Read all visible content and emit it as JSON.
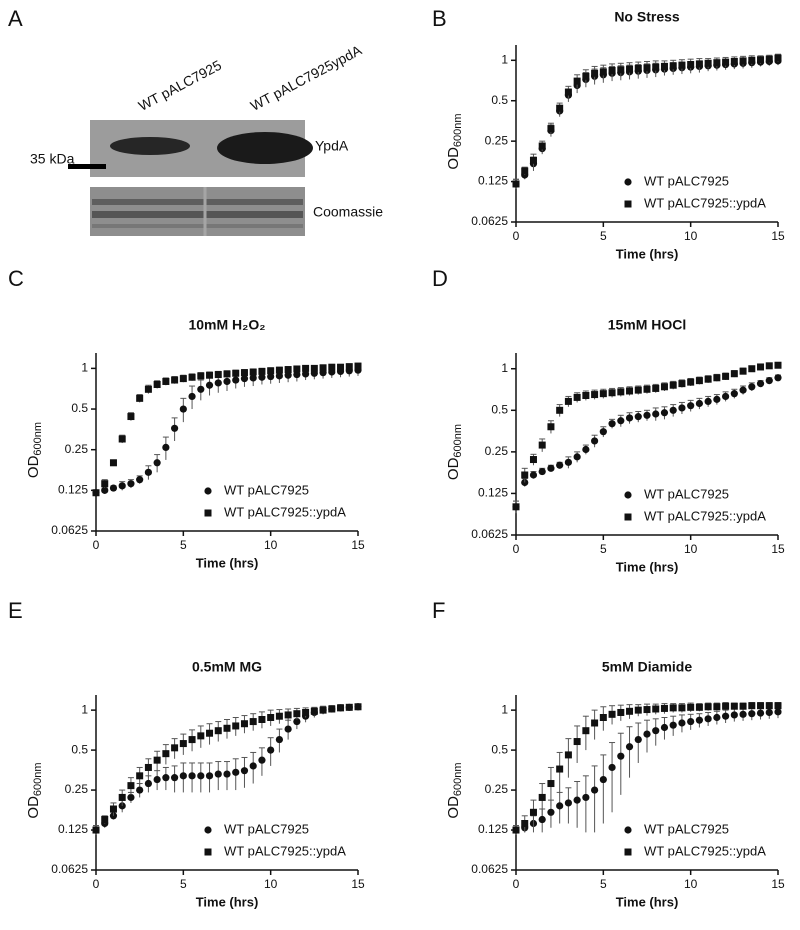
{
  "panel_labels": [
    "A",
    "B",
    "C",
    "D",
    "E",
    "F"
  ],
  "blot": {
    "lane_labels": [
      "WT pALC7925",
      "WT pALC7925ypdA"
    ],
    "row_labels": [
      "YpdA",
      "Coomassie"
    ],
    "marker_label": "35 kDa"
  },
  "chart_data": [
    {
      "type": "scatter",
      "title": "No Stress",
      "x_label": "Time (hrs)",
      "y_label": "OD",
      "y_label_subscript": "600nm",
      "yscale": "log2",
      "xlim": [
        0,
        15
      ],
      "xticks": [
        0,
        5,
        10,
        15
      ],
      "ylim": [
        0.0625,
        1.3
      ],
      "yticks": [
        0.0625,
        0.125,
        0.25,
        0.5,
        1
      ],
      "x": [
        0,
        0.5,
        1,
        1.5,
        2,
        2.5,
        3,
        3.5,
        4,
        4.5,
        5,
        5.5,
        6,
        6.5,
        7,
        7.5,
        8,
        8.5,
        9,
        9.5,
        10,
        10.5,
        11,
        11.5,
        12,
        12.5,
        13,
        13.5,
        14,
        14.5,
        15
      ],
      "series": [
        {
          "name": "WT pALC7925",
          "color": "#111111",
          "marker": "circle",
          "values": [
            0.12,
            0.14,
            0.17,
            0.22,
            0.3,
            0.42,
            0.55,
            0.65,
            0.72,
            0.76,
            0.78,
            0.8,
            0.81,
            0.82,
            0.83,
            0.84,
            0.85,
            0.86,
            0.87,
            0.88,
            0.89,
            0.9,
            0.91,
            0.92,
            0.93,
            0.94,
            0.95,
            0.96,
            0.97,
            0.98,
            0.99
          ],
          "errors": [
            0.01,
            0.01,
            0.02,
            0.02,
            0.03,
            0.04,
            0.06,
            0.08,
            0.09,
            0.1,
            0.1,
            0.1,
            0.1,
            0.1,
            0.1,
            0.1,
            0.1,
            0.09,
            0.09,
            0.09,
            0.09,
            0.09,
            0.08,
            0.08,
            0.08,
            0.08,
            0.08,
            0.08,
            0.07,
            0.07,
            0.07
          ]
        },
        {
          "name": "WT pALC7925::ypdA",
          "color": "#111111",
          "marker": "square",
          "values": [
            0.12,
            0.15,
            0.18,
            0.23,
            0.31,
            0.44,
            0.58,
            0.7,
            0.76,
            0.8,
            0.82,
            0.84,
            0.85,
            0.86,
            0.87,
            0.88,
            0.89,
            0.9,
            0.91,
            0.92,
            0.93,
            0.94,
            0.95,
            0.96,
            0.97,
            0.98,
            0.99,
            1.0,
            1.01,
            1.02,
            1.04
          ],
          "errors": [
            0.01,
            0.01,
            0.02,
            0.02,
            0.03,
            0.04,
            0.06,
            0.08,
            0.09,
            0.1,
            0.1,
            0.1,
            0.1,
            0.1,
            0.1,
            0.1,
            0.1,
            0.09,
            0.09,
            0.09,
            0.09,
            0.09,
            0.08,
            0.08,
            0.08,
            0.08,
            0.08,
            0.08,
            0.07,
            0.07,
            0.07
          ]
        }
      ]
    },
    {
      "type": "scatter",
      "title": "10mM H₂O₂",
      "x_label": "Time (hrs)",
      "y_label": "OD",
      "y_label_subscript": "600nm",
      "yscale": "log2",
      "xlim": [
        0,
        15
      ],
      "xticks": [
        0,
        5,
        10,
        15
      ],
      "ylim": [
        0.0625,
        1.3
      ],
      "yticks": [
        0.0625,
        0.125,
        0.25,
        0.5,
        1
      ],
      "x": [
        0,
        0.5,
        1,
        1.5,
        2,
        2.5,
        3,
        3.5,
        4,
        4.5,
        5,
        5.5,
        6,
        6.5,
        7,
        7.5,
        8,
        8.5,
        9,
        9.5,
        10,
        10.5,
        11,
        11.5,
        12,
        12.5,
        13,
        13.5,
        14,
        14.5,
        15
      ],
      "series": [
        {
          "name": "WT pALC7925",
          "color": "#111111",
          "marker": "circle",
          "values": [
            0.12,
            0.125,
            0.13,
            0.135,
            0.14,
            0.15,
            0.17,
            0.2,
            0.26,
            0.36,
            0.5,
            0.62,
            0.7,
            0.75,
            0.78,
            0.8,
            0.82,
            0.84,
            0.85,
            0.86,
            0.87,
            0.88,
            0.89,
            0.9,
            0.91,
            0.92,
            0.93,
            0.94,
            0.95,
            0.96,
            0.97
          ],
          "errors": [
            0.005,
            0.005,
            0.005,
            0.01,
            0.01,
            0.01,
            0.02,
            0.03,
            0.05,
            0.07,
            0.1,
            0.12,
            0.12,
            0.12,
            0.12,
            0.12,
            0.11,
            0.11,
            0.11,
            0.1,
            0.1,
            0.1,
            0.1,
            0.1,
            0.09,
            0.09,
            0.09,
            0.09,
            0.09,
            0.09,
            0.09
          ]
        },
        {
          "name": "WT pALC7925::ypdA",
          "color": "#111111",
          "marker": "square",
          "values": [
            0.12,
            0.14,
            0.2,
            0.3,
            0.44,
            0.6,
            0.7,
            0.76,
            0.8,
            0.82,
            0.84,
            0.86,
            0.88,
            0.89,
            0.9,
            0.91,
            0.92,
            0.93,
            0.94,
            0.95,
            0.96,
            0.97,
            0.98,
            0.99,
            1.0,
            1.0,
            1.01,
            1.02,
            1.02,
            1.03,
            1.04
          ],
          "errors": [
            0.005,
            0.01,
            0.01,
            0.02,
            0.03,
            0.04,
            0.05,
            0.05,
            0.05,
            0.05,
            0.05,
            0.05,
            0.05,
            0.05,
            0.05,
            0.05,
            0.05,
            0.05,
            0.05,
            0.05,
            0.05,
            0.05,
            0.05,
            0.05,
            0.05,
            0.05,
            0.05,
            0.05,
            0.05,
            0.05,
            0.05
          ]
        }
      ]
    },
    {
      "type": "scatter",
      "title": "15mM HOCl",
      "x_label": "Time (hrs)",
      "y_label": "OD",
      "y_label_subscript": "600nm",
      "yscale": "log2",
      "xlim": [
        0,
        15
      ],
      "xticks": [
        0,
        5,
        10,
        15
      ],
      "ylim": [
        0.0625,
        1.3
      ],
      "yticks": [
        0.0625,
        0.125,
        0.25,
        0.5,
        1
      ],
      "x": [
        0,
        0.5,
        1,
        1.5,
        2,
        2.5,
        3,
        3.5,
        4,
        4.5,
        5,
        5.5,
        6,
        6.5,
        7,
        7.5,
        8,
        8.5,
        9,
        9.5,
        10,
        10.5,
        11,
        11.5,
        12,
        12.5,
        13,
        13.5,
        14,
        14.5,
        15
      ],
      "series": [
        {
          "name": "WT pALC7925",
          "color": "#111111",
          "marker": "circle",
          "values": [
            0.1,
            0.15,
            0.17,
            0.18,
            0.19,
            0.2,
            0.21,
            0.23,
            0.26,
            0.3,
            0.35,
            0.4,
            0.42,
            0.44,
            0.45,
            0.46,
            0.47,
            0.48,
            0.5,
            0.52,
            0.54,
            0.56,
            0.58,
            0.6,
            0.63,
            0.66,
            0.7,
            0.74,
            0.78,
            0.82,
            0.86
          ],
          "errors": [
            0.01,
            0.01,
            0.01,
            0.01,
            0.01,
            0.01,
            0.02,
            0.02,
            0.02,
            0.03,
            0.03,
            0.03,
            0.04,
            0.04,
            0.04,
            0.04,
            0.05,
            0.05,
            0.05,
            0.05,
            0.05,
            0.05,
            0.05,
            0.05,
            0.05,
            0.05,
            0.05,
            0.05,
            0.04,
            0.04,
            0.04
          ]
        },
        {
          "name": "WT pALC7925::ypdA",
          "color": "#111111",
          "marker": "square",
          "values": [
            0.1,
            0.17,
            0.22,
            0.28,
            0.38,
            0.5,
            0.58,
            0.62,
            0.64,
            0.65,
            0.66,
            0.67,
            0.68,
            0.69,
            0.7,
            0.71,
            0.72,
            0.74,
            0.76,
            0.78,
            0.8,
            0.82,
            0.84,
            0.86,
            0.88,
            0.92,
            0.96,
            1.0,
            1.03,
            1.05,
            1.06
          ],
          "errors": [
            0.01,
            0.02,
            0.02,
            0.03,
            0.04,
            0.05,
            0.05,
            0.05,
            0.05,
            0.05,
            0.05,
            0.05,
            0.05,
            0.05,
            0.05,
            0.05,
            0.05,
            0.05,
            0.05,
            0.05,
            0.05,
            0.05,
            0.05,
            0.05,
            0.05,
            0.05,
            0.05,
            0.04,
            0.04,
            0.04,
            0.04
          ]
        }
      ]
    },
    {
      "type": "scatter",
      "title": "0.5mM MG",
      "x_label": "Time (hrs)",
      "y_label": "OD",
      "y_label_subscript": "600nm",
      "yscale": "log2",
      "xlim": [
        0,
        15
      ],
      "xticks": [
        0,
        5,
        10,
        15
      ],
      "ylim": [
        0.0625,
        1.3
      ],
      "yticks": [
        0.0625,
        0.125,
        0.25,
        0.5,
        1
      ],
      "x": [
        0,
        0.5,
        1,
        1.5,
        2,
        2.5,
        3,
        3.5,
        4,
        4.5,
        5,
        5.5,
        6,
        6.5,
        7,
        7.5,
        8,
        8.5,
        9,
        9.5,
        10,
        10.5,
        11,
        11.5,
        12,
        12.5,
        13,
        13.5,
        14,
        14.5,
        15
      ],
      "series": [
        {
          "name": "WT pALC7925",
          "color": "#111111",
          "marker": "circle",
          "values": [
            0.125,
            0.14,
            0.16,
            0.19,
            0.22,
            0.25,
            0.28,
            0.3,
            0.31,
            0.31,
            0.32,
            0.32,
            0.32,
            0.32,
            0.33,
            0.33,
            0.34,
            0.35,
            0.38,
            0.42,
            0.5,
            0.6,
            0.72,
            0.82,
            0.9,
            0.96,
            1.0,
            1.02,
            1.04,
            1.05,
            1.06
          ],
          "errors": [
            0.01,
            0.01,
            0.01,
            0.02,
            0.02,
            0.03,
            0.04,
            0.05,
            0.06,
            0.07,
            0.08,
            0.08,
            0.08,
            0.08,
            0.08,
            0.08,
            0.09,
            0.09,
            0.1,
            0.1,
            0.12,
            0.12,
            0.12,
            0.1,
            0.09,
            0.08,
            0.07,
            0.06,
            0.06,
            0.05,
            0.05
          ]
        },
        {
          "name": "WT pALC7925::ypdA",
          "color": "#111111",
          "marker": "square",
          "values": [
            0.125,
            0.15,
            0.18,
            0.22,
            0.27,
            0.32,
            0.37,
            0.42,
            0.47,
            0.52,
            0.56,
            0.6,
            0.64,
            0.67,
            0.7,
            0.73,
            0.76,
            0.79,
            0.82,
            0.85,
            0.88,
            0.9,
            0.92,
            0.94,
            0.96,
            0.98,
            1.0,
            1.02,
            1.04,
            1.05,
            1.06
          ],
          "errors": [
            0.01,
            0.01,
            0.02,
            0.03,
            0.04,
            0.05,
            0.06,
            0.07,
            0.08,
            0.09,
            0.1,
            0.11,
            0.12,
            0.12,
            0.12,
            0.12,
            0.12,
            0.12,
            0.12,
            0.12,
            0.12,
            0.11,
            0.1,
            0.09,
            0.08,
            0.07,
            0.06,
            0.06,
            0.05,
            0.05,
            0.05
          ]
        }
      ]
    },
    {
      "type": "scatter",
      "title": "5mM Diamide",
      "x_label": "Time (hrs)",
      "y_label": "OD",
      "y_label_subscript": "600nm",
      "yscale": "log2",
      "xlim": [
        0,
        15
      ],
      "xticks": [
        0,
        5,
        10,
        15
      ],
      "ylim": [
        0.0625,
        1.3
      ],
      "yticks": [
        0.0625,
        0.125,
        0.25,
        0.5,
        1
      ],
      "x": [
        0,
        0.5,
        1,
        1.5,
        2,
        2.5,
        3,
        3.5,
        4,
        4.5,
        5,
        5.5,
        6,
        6.5,
        7,
        7.5,
        8,
        8.5,
        9,
        9.5,
        10,
        10.5,
        11,
        11.5,
        12,
        12.5,
        13,
        13.5,
        14,
        14.5,
        15
      ],
      "series": [
        {
          "name": "WT pALC7925",
          "color": "#111111",
          "marker": "circle",
          "values": [
            0.125,
            0.13,
            0.14,
            0.15,
            0.17,
            0.19,
            0.2,
            0.21,
            0.22,
            0.25,
            0.3,
            0.37,
            0.45,
            0.53,
            0.6,
            0.66,
            0.7,
            0.74,
            0.77,
            0.8,
            0.82,
            0.84,
            0.86,
            0.88,
            0.9,
            0.92,
            0.93,
            0.94,
            0.95,
            0.96,
            0.97
          ],
          "errors": [
            0.01,
            0.01,
            0.02,
            0.03,
            0.04,
            0.05,
            0.06,
            0.08,
            0.1,
            0.13,
            0.16,
            0.2,
            0.22,
            0.22,
            0.2,
            0.18,
            0.16,
            0.14,
            0.13,
            0.12,
            0.11,
            0.1,
            0.1,
            0.1,
            0.1,
            0.1,
            0.1,
            0.1,
            0.1,
            0.1,
            0.1
          ]
        },
        {
          "name": "WT pALC7925::ypdA",
          "color": "#111111",
          "marker": "square",
          "values": [
            0.125,
            0.14,
            0.17,
            0.22,
            0.28,
            0.36,
            0.46,
            0.58,
            0.7,
            0.8,
            0.88,
            0.93,
            0.96,
            0.98,
            1.0,
            1.01,
            1.02,
            1.03,
            1.04,
            1.04,
            1.05,
            1.05,
            1.06,
            1.06,
            1.07,
            1.07,
            1.07,
            1.08,
            1.08,
            1.08,
            1.08
          ],
          "errors": [
            0.01,
            0.02,
            0.04,
            0.06,
            0.09,
            0.12,
            0.15,
            0.18,
            0.2,
            0.2,
            0.18,
            0.15,
            0.13,
            0.12,
            0.1,
            0.1,
            0.09,
            0.09,
            0.08,
            0.08,
            0.08,
            0.07,
            0.07,
            0.07,
            0.07,
            0.06,
            0.06,
            0.06,
            0.06,
            0.06,
            0.06
          ]
        }
      ]
    }
  ]
}
